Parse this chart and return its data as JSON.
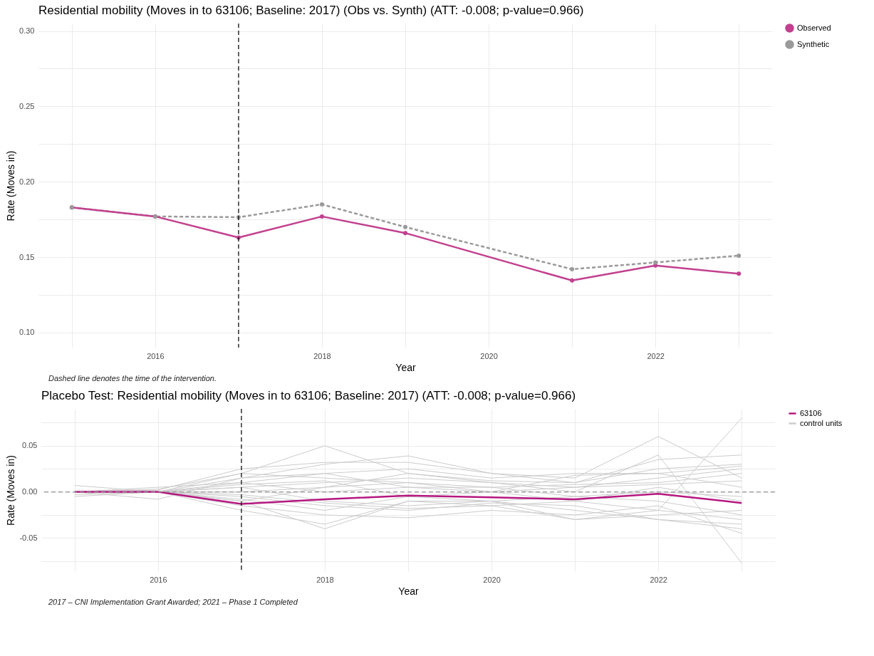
{
  "chart_data": [
    {
      "type": "line",
      "title": "Residential mobility (Moves in to 63106; Baseline: 2017) (Obs vs. Synth) (ATT: -0.008; p-value=0.966)",
      "xlabel": "Year",
      "ylabel": "Rate (Moves in)",
      "annotations": [
        "Dashed line denotes the time of the intervention."
      ],
      "x": [
        2015,
        2016,
        2017,
        2018,
        2019,
        2021,
        2022,
        2023
      ],
      "series": [
        {
          "name": "Observed",
          "color": "#c2408f",
          "values": [
            0.183,
            0.177,
            0.163,
            0.177,
            0.166,
            0.1345,
            0.1445,
            0.139
          ]
        },
        {
          "name": "Synthetic",
          "color": "#9a9a9a",
          "line_style": "dashed",
          "values": [
            0.183,
            0.177,
            0.1765,
            0.185,
            0.17,
            0.142,
            0.1465,
            0.151
          ]
        }
      ],
      "xlim": [
        2014.6,
        2023.4
      ],
      "xticks": [
        {
          "value": 2015,
          "label": null
        },
        2016,
        {
          "value": 2017,
          "label": null
        },
        2018,
        {
          "value": 2019,
          "label": null
        },
        2020,
        {
          "value": 2021,
          "label": null
        },
        2022,
        {
          "value": 2023,
          "label": null
        }
      ],
      "ylim": [
        0.09,
        0.305
      ],
      "yticks": [
        {
          "value": 0.1,
          "label": "0.10"
        },
        {
          "value": 0.125,
          "label": null
        },
        0.15,
        {
          "value": 0.175,
          "label": null
        },
        {
          "value": 0.2,
          "label": "0.20"
        },
        {
          "value": 0.225,
          "label": null
        },
        0.25,
        {
          "value": 0.275,
          "label": null
        },
        {
          "value": 0.3,
          "label": "0.30"
        }
      ],
      "ref_lines": [
        {
          "axis": "x",
          "value": 2017,
          "color": "#000000",
          "line_style": "dashed"
        }
      ],
      "grid": true,
      "legend": "right",
      "marker": "circle"
    },
    {
      "type": "line",
      "title": "Placebo Test: Residential mobility (Moves in to 63106; Baseline: 2017) (ATT: -0.008; p-value=0.966)",
      "xlabel": "Year",
      "ylabel": "Rate (Moves in)",
      "annotations": [
        "2017 – CNI Implementation Grant Awarded; 2021 – Phase 1 Completed"
      ],
      "x": [
        2015,
        2016,
        2017,
        2018,
        2019,
        2020,
        2021,
        2022,
        2023
      ],
      "series": [
        {
          "name": "63106",
          "color": "#b5177f",
          "values": [
            0,
            0,
            -0.013,
            -0.008,
            -0.004,
            -0.006,
            -0.008,
            -0.002,
            -0.012
          ]
        },
        {
          "name": "control units",
          "color": "#cccccc",
          "values": [
            0.007,
            0,
            0.02,
            0.05,
            0.02,
            0.01,
            0,
            0.04,
            -0.077
          ]
        },
        {
          "color": "#cccccc",
          "values": [
            -0.003,
            0,
            -0.01,
            -0.04,
            -0.01,
            -0.01,
            -0.03,
            -0.02,
            0.08
          ]
        },
        {
          "color": "#cccccc",
          "values": [
            0,
            0.002,
            0.025,
            0.032,
            0.032,
            0.02,
            0.015,
            0.06,
            0.015
          ]
        },
        {
          "color": "#cccccc",
          "values": [
            0,
            -0.008,
            0.015,
            0.03,
            0.039,
            0.02,
            0.01,
            0.035,
            0.04
          ]
        },
        {
          "color": "#cccccc",
          "values": [
            0,
            0.005,
            0.01,
            0.02,
            0.025,
            0.015,
            0.02,
            0.02,
            0.028
          ]
        },
        {
          "color": "#cccccc",
          "values": [
            -0.005,
            0,
            -0.015,
            -0.025,
            -0.028,
            -0.02,
            -0.025,
            -0.015,
            -0.045
          ]
        },
        {
          "color": "#cccccc",
          "values": [
            0,
            0,
            -0.02,
            -0.035,
            -0.01,
            -0.015,
            -0.03,
            -0.025,
            -0.02
          ]
        },
        {
          "color": "#cccccc",
          "values": [
            0,
            0,
            0.005,
            0.01,
            0.015,
            0.01,
            0.005,
            0.015,
            0.025
          ]
        },
        {
          "color": "#cccccc",
          "values": [
            0,
            0,
            0.01,
            0,
            0.005,
            0,
            -0.01,
            0.005,
            -0.01
          ]
        },
        {
          "color": "#cccccc",
          "values": [
            0,
            0,
            -0.005,
            -0.015,
            -0.02,
            -0.012,
            -0.015,
            -0.03,
            -0.035
          ]
        },
        {
          "color": "#cccccc",
          "values": [
            0,
            0.003,
            0.02,
            0.015,
            0.01,
            0.005,
            0.008,
            0.01,
            0.02
          ]
        },
        {
          "color": "#cccccc",
          "values": [
            0,
            0,
            0.005,
            -0.01,
            -0.015,
            -0.01,
            -0.005,
            -0.01,
            -0.025
          ]
        },
        {
          "color": "#cccccc",
          "values": [
            0,
            0,
            -0.01,
            0.005,
            0.01,
            0,
            0.018,
            0.02,
            0.005
          ]
        },
        {
          "color": "#cccccc",
          "values": [
            0,
            0,
            0.015,
            0.02,
            0.005,
            0.005,
            -0.005,
            0,
            -0.005
          ]
        },
        {
          "color": "#cccccc",
          "values": [
            0,
            0,
            -0.008,
            -0.02,
            -0.005,
            -0.01,
            -0.02,
            -0.03,
            -0.04
          ]
        },
        {
          "color": "#cccccc",
          "values": [
            0,
            0,
            0.008,
            0.012,
            -0.005,
            0,
            0.005,
            0.008,
            0.012
          ]
        },
        {
          "color": "#cccccc",
          "values": [
            0,
            0,
            0,
            0.005,
            0.02,
            0.012,
            0.01,
            0.025,
            0.03
          ]
        },
        {
          "color": "#cccccc",
          "values": [
            0,
            0,
            -0.003,
            -0.012,
            -0.018,
            -0.015,
            -0.01,
            -0.02,
            -0.03
          ]
        }
      ],
      "xlim": [
        2014.6,
        2023.4
      ],
      "xticks": [
        {
          "value": 2015,
          "label": null
        },
        2016,
        {
          "value": 2017,
          "label": null
        },
        2018,
        {
          "value": 2019,
          "label": null
        },
        2020,
        {
          "value": 2021,
          "label": null
        },
        2022,
        {
          "value": 2023,
          "label": null
        }
      ],
      "ylim": [
        -0.086,
        0.09
      ],
      "yticks": [
        {
          "value": -0.075,
          "label": null
        },
        {
          "value": -0.05,
          "label": "-0.05"
        },
        {
          "value": -0.025,
          "label": null
        },
        {
          "value": 0,
          "label": "0.00"
        },
        {
          "value": 0.025,
          "label": null
        },
        {
          "value": 0.05,
          "label": "0.05"
        },
        {
          "value": 0.075,
          "label": null
        }
      ],
      "ref_lines": [
        {
          "axis": "y",
          "value": 0,
          "color": "#999999",
          "line_style": "dashed"
        },
        {
          "axis": "x",
          "value": 2017,
          "color": "#000000",
          "line_style": "dashed"
        }
      ],
      "grid": true,
      "legend": "right"
    }
  ]
}
